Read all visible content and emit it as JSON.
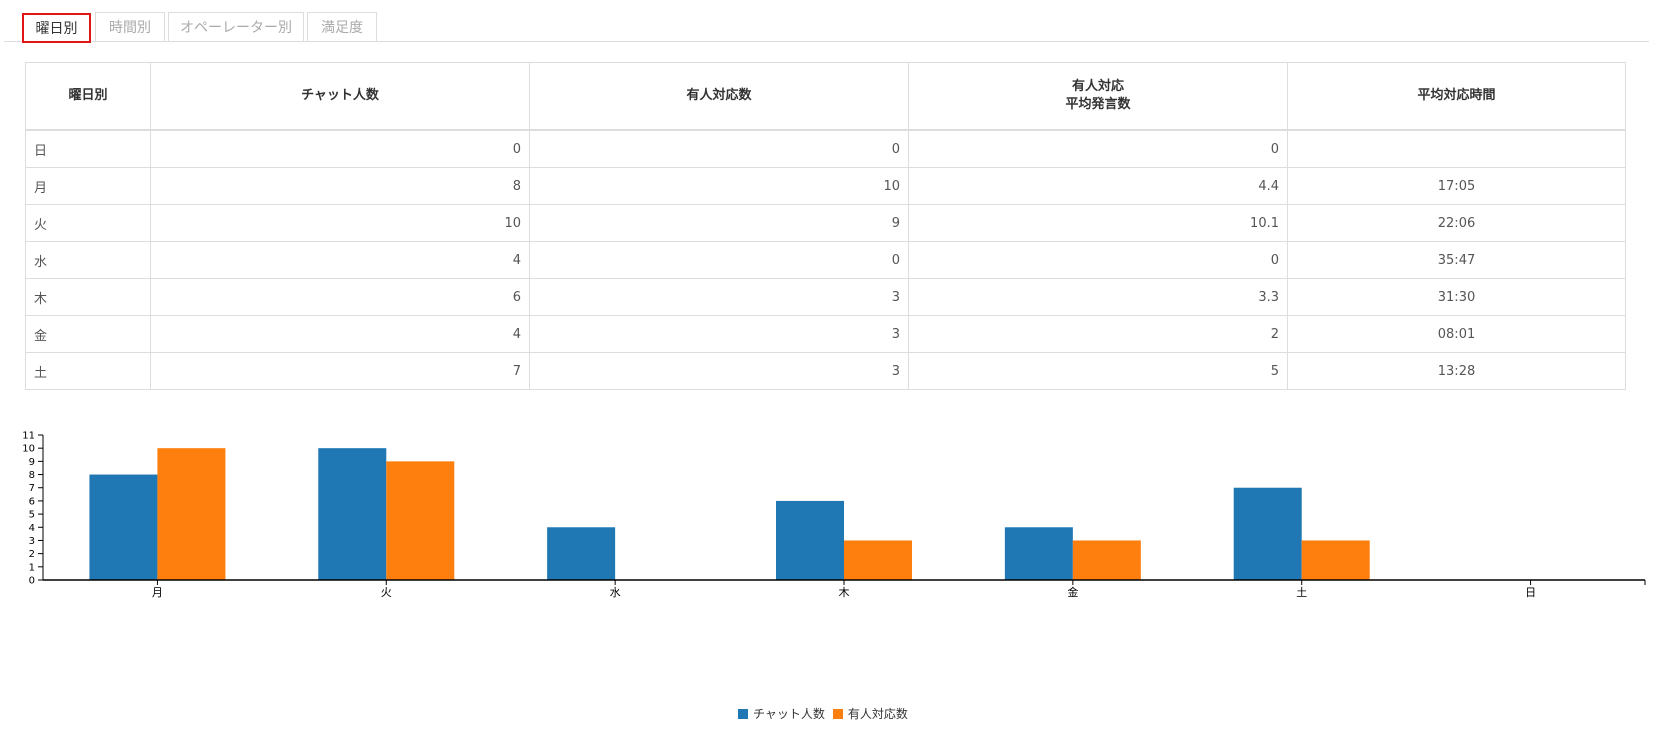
{
  "tabs": [
    {
      "label": "曜日別",
      "active": true
    },
    {
      "label": "時間別",
      "active": false
    },
    {
      "label": "オペーレーター別",
      "active": false
    },
    {
      "label": "満足度",
      "active": false
    }
  ],
  "table": {
    "headers": [
      "曜日別",
      "チャット人数",
      "有人対応数",
      "有人対応",
      "平均発言数",
      "平均対応時間"
    ],
    "rows": [
      [
        "日",
        "0",
        "0",
        "0",
        ""
      ],
      [
        "月",
        "8",
        "10",
        "4.4",
        "17:05"
      ],
      [
        "火",
        "10",
        "9",
        "10.1",
        "22:06"
      ],
      [
        "水",
        "4",
        "0",
        "0",
        "35:47"
      ],
      [
        "木",
        "6",
        "3",
        "3.3",
        "31:30"
      ],
      [
        "金",
        "4",
        "3",
        "2",
        "08:01"
      ],
      [
        "土",
        "7",
        "3",
        "5",
        "13:28"
      ]
    ]
  },
  "chart_data": {
    "type": "bar",
    "categories": [
      "月",
      "火",
      "水",
      "木",
      "金",
      "土",
      "日"
    ],
    "series": [
      {
        "name": "チャット人数",
        "values": [
          8,
          10,
          4,
          6,
          4,
          7,
          0
        ],
        "color": "#1f77b4"
      },
      {
        "name": "有人対応数",
        "values": [
          10,
          9,
          0,
          3,
          3,
          3,
          0
        ],
        "color": "#ff7f0e"
      }
    ],
    "yticks": [
      0,
      1,
      2,
      3,
      4,
      5,
      6,
      7,
      8,
      9,
      10,
      11
    ],
    "ylim": [
      0,
      11
    ],
    "legend": "bottom-center"
  }
}
